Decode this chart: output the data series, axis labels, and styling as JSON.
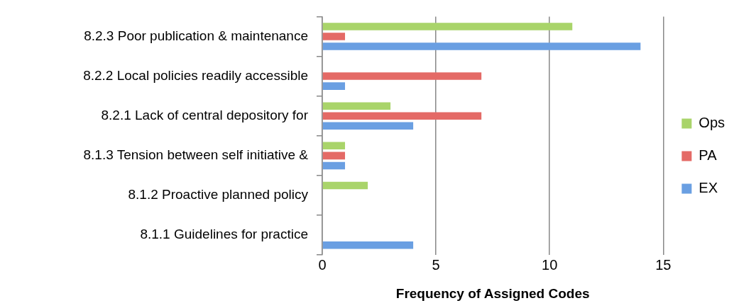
{
  "chart_data": {
    "type": "bar",
    "orientation": "horizontal",
    "xlabel": "Frequency of Assigned Codes",
    "categories": [
      "8.2.3 Poor publication & maintenance",
      "8.2.2 Local policies readily accessible",
      "8.2.1 Lack of central depository for",
      "8.1.3 Tension between self initiative &",
      "8.1.2 Proactive planned policy",
      "8.1.1 Guidelines for practice"
    ],
    "series": [
      {
        "name": "Ops",
        "color": "#a9d46a",
        "values": [
          11,
          0,
          3,
          1,
          2,
          0
        ]
      },
      {
        "name": "PA",
        "color": "#e46a66",
        "values": [
          1,
          7,
          7,
          1,
          0,
          0
        ]
      },
      {
        "name": "EX",
        "color": "#6a9fe2",
        "values": [
          14,
          1,
          4,
          1,
          0,
          4
        ]
      }
    ],
    "xlim": [
      0,
      15
    ],
    "xticks": [
      0,
      5,
      10,
      15
    ],
    "grid": "x",
    "legend": "right"
  }
}
